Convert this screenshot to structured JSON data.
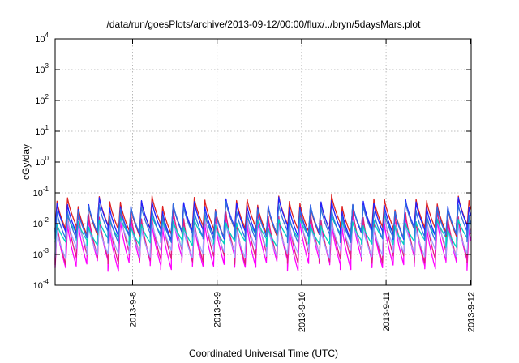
{
  "chart_data": {
    "type": "line",
    "title": "/data/run/goesPlots/archive/2013-09-12/00:00/flux/../bryn/5daysMars.plot",
    "xlabel": "Coordinated Universal Time (UTC)",
    "ylabel": "cGy/day",
    "yscale": "log",
    "ylim": [
      0.0001,
      10000
    ],
    "xlim": [
      "2013-09-07T02:00",
      "2013-09-12T00:10"
    ],
    "grid": true,
    "legend": "none",
    "y_ticks": [
      {
        "base": "10",
        "exp": "-4"
      },
      {
        "base": "10",
        "exp": "-3"
      },
      {
        "base": "10",
        "exp": "-2"
      },
      {
        "base": "10",
        "exp": "-1"
      },
      {
        "base": "10",
        "exp": "0"
      },
      {
        "base": "10",
        "exp": "1"
      },
      {
        "base": "10",
        "exp": "2"
      },
      {
        "base": "10",
        "exp": "3"
      },
      {
        "base": "10",
        "exp": "4"
      }
    ],
    "x_ticks": [
      {
        "value": "2013-09-08T00:00",
        "label": "2013-9-8"
      },
      {
        "value": "2013-09-09T00:00",
        "label": "2013-9-9"
      },
      {
        "value": "2013-09-10T00:00",
        "label": "2013-9-10"
      },
      {
        "value": "2013-09-11T00:00",
        "label": "2013-9-11"
      },
      {
        "value": "2013-09-12T00:00",
        "label": "2013-9-12"
      }
    ],
    "cycle_hours": 3,
    "series": [
      {
        "color": "#ff00ff",
        "peak": 0.012,
        "trough": 0.0005
      },
      {
        "color": "#e0207f",
        "peak": 0.018,
        "trough": 0.0008
      },
      {
        "color": "#a0a0ff",
        "peak": 0.01,
        "trough": 0.0012
      },
      {
        "color": "#00d0c0",
        "peak": 0.012,
        "trough": 0.003
      },
      {
        "color": "#e02020",
        "peak": 0.05,
        "trough": 0.006
      },
      {
        "color": "#2020ff",
        "peak": 0.042,
        "trough": 0.005
      },
      {
        "color": "#3070e0",
        "peak": 0.03,
        "trough": 0.004
      }
    ]
  }
}
